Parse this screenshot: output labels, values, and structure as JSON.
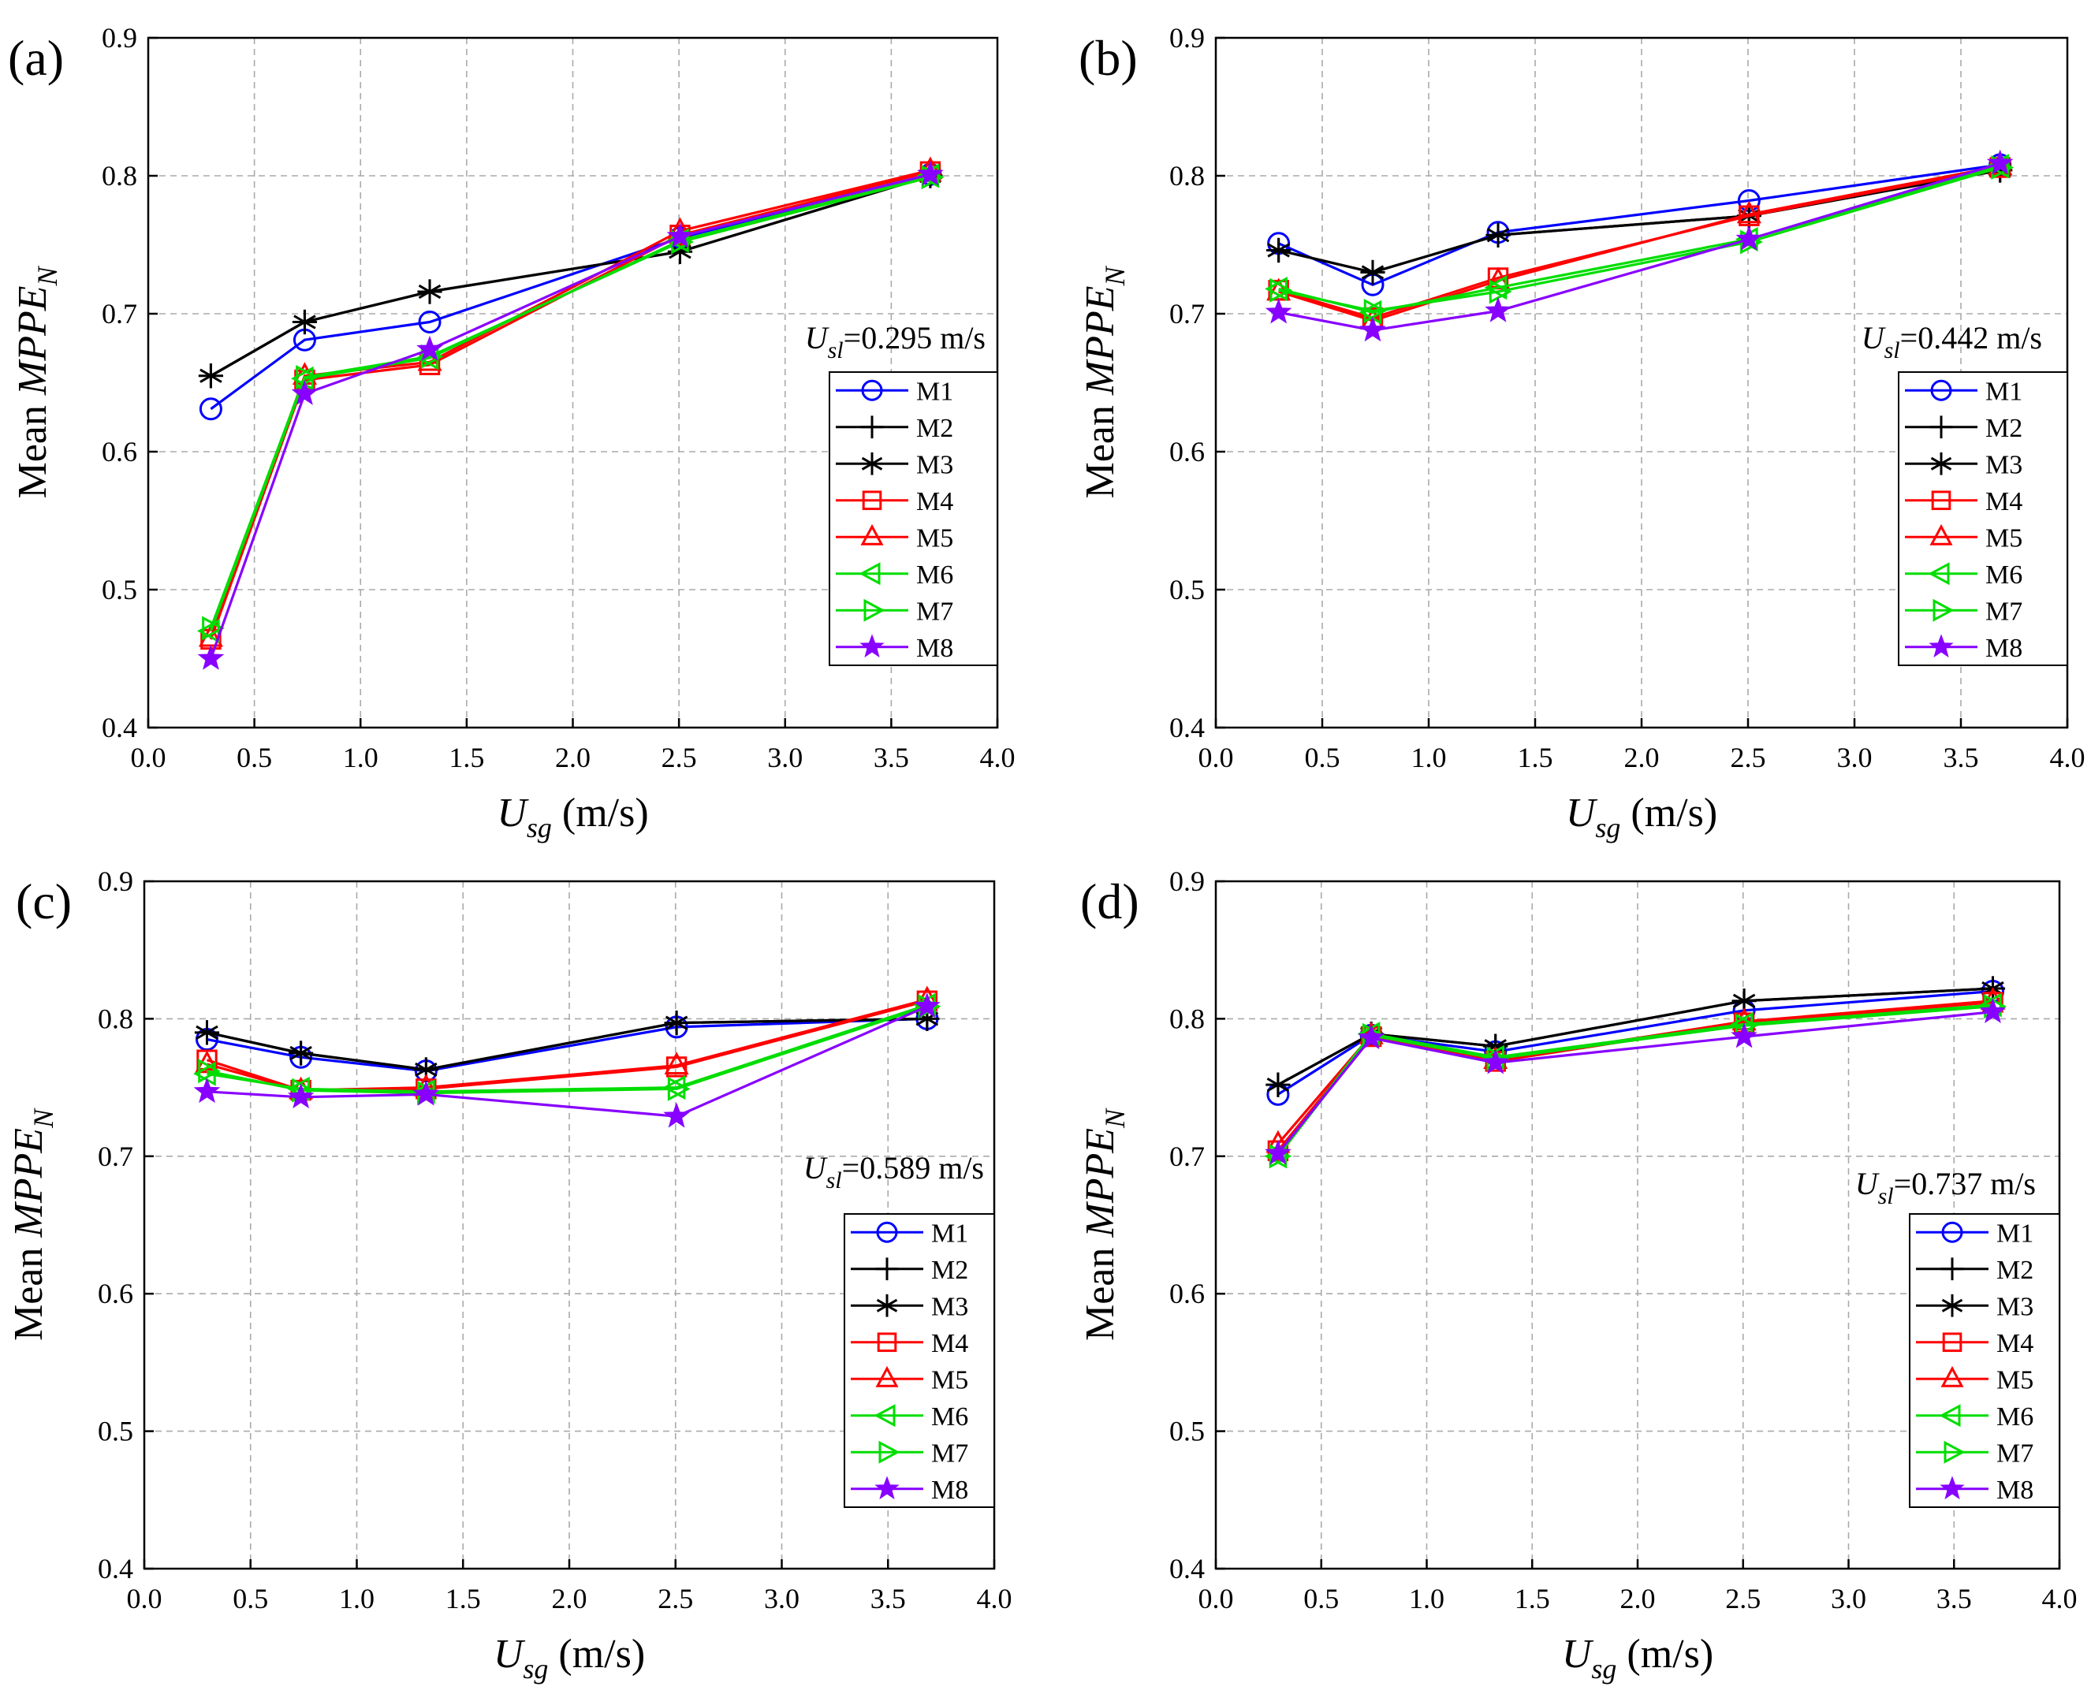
{
  "chart_data": [
    {
      "panel": "(a)",
      "type": "line",
      "annotation": {
        "var": "U",
        "sub": "sl",
        "value": "=0.295 m/s"
      },
      "x": [
        0.295,
        0.737,
        1.326,
        2.505,
        3.684
      ],
      "series": [
        {
          "name": "M1",
          "color": "#0000FF",
          "marker": "circle",
          "values": [
            0.631,
            0.681,
            0.694,
            0.755,
            0.801
          ]
        },
        {
          "name": "M2",
          "color": "#000000",
          "marker": "plus",
          "values": [
            0.655,
            0.694,
            0.716,
            0.745,
            0.8
          ]
        },
        {
          "name": "M3",
          "color": "#000000",
          "marker": "star6",
          "values": [
            0.655,
            0.694,
            0.716,
            0.745,
            0.8
          ]
        },
        {
          "name": "M4",
          "color": "#FF0000",
          "marker": "square",
          "values": [
            0.464,
            0.652,
            0.663,
            0.757,
            0.803
          ]
        },
        {
          "name": "M5",
          "color": "#FF0000",
          "marker": "triangle-up",
          "values": [
            0.465,
            0.655,
            0.665,
            0.76,
            0.804
          ]
        },
        {
          "name": "M6",
          "color": "#00DD00",
          "marker": "triangle-left",
          "values": [
            0.47,
            0.653,
            0.668,
            0.753,
            0.8
          ]
        },
        {
          "name": "M7",
          "color": "#00DD00",
          "marker": "triangle-right",
          "values": [
            0.472,
            0.654,
            0.669,
            0.752,
            0.799
          ]
        },
        {
          "name": "M8",
          "color": "#8800FF",
          "marker": "star5",
          "values": [
            0.45,
            0.642,
            0.674,
            0.756,
            0.801
          ]
        }
      ]
    },
    {
      "panel": "(b)",
      "type": "line",
      "annotation": {
        "var": "U",
        "sub": "sl",
        "value": "=0.442 m/s"
      },
      "x": [
        0.295,
        0.737,
        1.326,
        2.505,
        3.684
      ],
      "series": [
        {
          "name": "M1",
          "color": "#0000FF",
          "marker": "circle",
          "values": [
            0.751,
            0.721,
            0.759,
            0.782,
            0.808
          ]
        },
        {
          "name": "M2",
          "color": "#000000",
          "marker": "plus",
          "values": [
            0.746,
            0.73,
            0.757,
            0.771,
            0.804
          ]
        },
        {
          "name": "M3",
          "color": "#000000",
          "marker": "star6",
          "values": [
            0.746,
            0.73,
            0.757,
            0.771,
            0.804
          ]
        },
        {
          "name": "M4",
          "color": "#FF0000",
          "marker": "square",
          "values": [
            0.717,
            0.697,
            0.726,
            0.771,
            0.806
          ]
        },
        {
          "name": "M5",
          "color": "#FF0000",
          "marker": "triangle-up",
          "values": [
            0.716,
            0.695,
            0.724,
            0.772,
            0.807
          ]
        },
        {
          "name": "M6",
          "color": "#00DD00",
          "marker": "triangle-left",
          "values": [
            0.718,
            0.701,
            0.719,
            0.754,
            0.807
          ]
        },
        {
          "name": "M7",
          "color": "#00DD00",
          "marker": "triangle-right",
          "values": [
            0.717,
            0.702,
            0.716,
            0.752,
            0.806
          ]
        },
        {
          "name": "M8",
          "color": "#8800FF",
          "marker": "star5",
          "values": [
            0.701,
            0.688,
            0.702,
            0.754,
            0.809
          ]
        }
      ]
    },
    {
      "panel": "(c)",
      "type": "line",
      "annotation": {
        "var": "U",
        "sub": "sl",
        "value": "=0.589 m/s"
      },
      "x": [
        0.295,
        0.737,
        1.326,
        2.505,
        3.684
      ],
      "series": [
        {
          "name": "M1",
          "color": "#0000FF",
          "marker": "circle",
          "values": [
            0.785,
            0.772,
            0.762,
            0.794,
            0.8
          ]
        },
        {
          "name": "M2",
          "color": "#000000",
          "marker": "plus",
          "values": [
            0.79,
            0.775,
            0.763,
            0.797,
            0.8
          ]
        },
        {
          "name": "M3",
          "color": "#000000",
          "marker": "star6",
          "values": [
            0.79,
            0.775,
            0.763,
            0.797,
            0.8
          ]
        },
        {
          "name": "M4",
          "color": "#FF0000",
          "marker": "square",
          "values": [
            0.77,
            0.748,
            0.749,
            0.765,
            0.813
          ]
        },
        {
          "name": "M5",
          "color": "#FF0000",
          "marker": "triangle-up",
          "values": [
            0.767,
            0.748,
            0.75,
            0.766,
            0.814
          ]
        },
        {
          "name": "M6",
          "color": "#00DD00",
          "marker": "triangle-left",
          "values": [
            0.76,
            0.749,
            0.747,
            0.75,
            0.81
          ]
        },
        {
          "name": "M7",
          "color": "#00DD00",
          "marker": "triangle-right",
          "values": [
            0.762,
            0.748,
            0.746,
            0.749,
            0.809
          ]
        },
        {
          "name": "M8",
          "color": "#8800FF",
          "marker": "star5",
          "values": [
            0.747,
            0.743,
            0.745,
            0.729,
            0.809
          ]
        }
      ]
    },
    {
      "panel": "(d)",
      "type": "line",
      "annotation": {
        "var": "U",
        "sub": "sl",
        "value": "=0.737 m/s"
      },
      "x": [
        0.295,
        0.737,
        1.326,
        2.505,
        3.684
      ],
      "series": [
        {
          "name": "M1",
          "color": "#0000FF",
          "marker": "circle",
          "values": [
            0.745,
            0.788,
            0.776,
            0.806,
            0.82
          ]
        },
        {
          "name": "M2",
          "color": "#000000",
          "marker": "plus",
          "values": [
            0.752,
            0.789,
            0.78,
            0.813,
            0.822
          ]
        },
        {
          "name": "M3",
          "color": "#000000",
          "marker": "star6",
          "values": [
            0.752,
            0.789,
            0.78,
            0.813,
            0.822
          ]
        },
        {
          "name": "M4",
          "color": "#FF0000",
          "marker": "square",
          "values": [
            0.704,
            0.787,
            0.769,
            0.797,
            0.812
          ]
        },
        {
          "name": "M5",
          "color": "#FF0000",
          "marker": "triangle-up",
          "values": [
            0.709,
            0.788,
            0.77,
            0.798,
            0.813
          ]
        },
        {
          "name": "M6",
          "color": "#00DD00",
          "marker": "triangle-left",
          "values": [
            0.7,
            0.789,
            0.772,
            0.796,
            0.81
          ]
        },
        {
          "name": "M7",
          "color": "#00DD00",
          "marker": "triangle-right",
          "values": [
            0.7,
            0.788,
            0.771,
            0.795,
            0.809
          ]
        },
        {
          "name": "M8",
          "color": "#8800FF",
          "marker": "star5",
          "values": [
            0.702,
            0.786,
            0.768,
            0.787,
            0.805
          ]
        }
      ]
    }
  ],
  "axes": {
    "x_ticks": [
      "0.0",
      "0.5",
      "1.0",
      "1.5",
      "2.0",
      "2.5",
      "3.0",
      "3.5",
      "4.0"
    ],
    "y_ticks": [
      "0.4",
      "0.5",
      "0.6",
      "0.7",
      "0.8",
      "0.9"
    ],
    "xlim": [
      0,
      4
    ],
    "ylim": [
      0.4,
      0.9
    ],
    "xlabel": {
      "var": "U",
      "sub": "sg",
      "unit": " (m/s)"
    },
    "ylabel": {
      "prefix": "Mean ",
      "var": "MPPE",
      "sub": "N"
    }
  }
}
